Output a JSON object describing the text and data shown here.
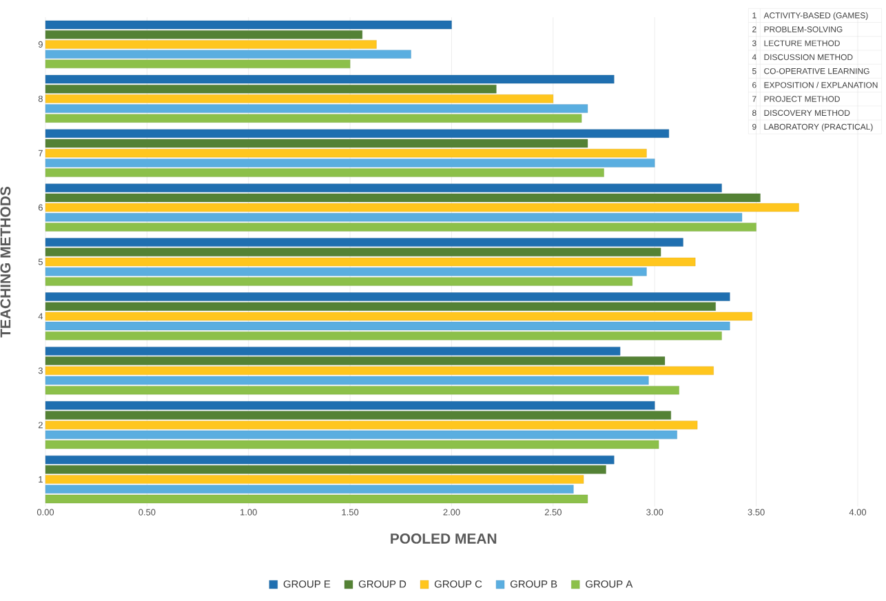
{
  "chart_data": {
    "type": "bar",
    "orientation": "horizontal",
    "xlabel": "POOLED  MEAN",
    "ylabel": "TEACHING  METHODS",
    "categories": [
      "9",
      "8",
      "7",
      "6",
      "5",
      "4",
      "3",
      "2",
      "1"
    ],
    "series": [
      {
        "name": "GROUP E",
        "color": "#1f6fb0",
        "values": [
          2.0,
          2.8,
          3.07,
          3.33,
          3.14,
          3.37,
          2.83,
          3.0,
          2.8
        ]
      },
      {
        "name": "GROUP D",
        "color": "#548235",
        "values": [
          1.56,
          2.22,
          2.67,
          3.52,
          3.03,
          3.3,
          3.05,
          3.08,
          2.76
        ]
      },
      {
        "name": "GROUP C",
        "color": "#ffc61e",
        "values": [
          1.63,
          2.5,
          2.96,
          3.71,
          3.2,
          3.48,
          3.29,
          3.21,
          2.65
        ]
      },
      {
        "name": "GROUP B",
        "color": "#5aaee0",
        "values": [
          1.8,
          2.67,
          3.0,
          3.43,
          2.96,
          3.37,
          2.97,
          3.11,
          2.6
        ]
      },
      {
        "name": "GROUP A",
        "color": "#8cc04a",
        "values": [
          1.5,
          2.64,
          2.75,
          3.5,
          2.89,
          3.33,
          3.12,
          3.02,
          2.67
        ]
      }
    ],
    "xlim": [
      0,
      4
    ],
    "xticks": [
      {
        "value": 0,
        "label": "0.00"
      },
      {
        "value": 0.5,
        "label": "0.50"
      },
      {
        "value": 1,
        "label": "1.00"
      },
      {
        "value": 1.5,
        "label": "1.50"
      },
      {
        "value": 2,
        "label": "2.00"
      },
      {
        "value": 2.5,
        "label": "2.50"
      },
      {
        "value": 3,
        "label": "3.00"
      },
      {
        "value": 3.5,
        "label": "3.50"
      },
      {
        "value": 4,
        "label": "4.00"
      }
    ],
    "grid": "x",
    "legend": "bottom",
    "annotations": [
      "1",
      "ACTIVITY-BASED (GAMES)",
      "2",
      "PROBLEM-SOLVING",
      "3",
      "LECTURE METHOD",
      "4",
      "DISCUSSION METHOD",
      "5",
      "CO-OPERATIVE LEARNING",
      "6",
      "EXPOSITION / EXPLANATION",
      "7",
      "PROJECT METHOD",
      "8",
      "DISCOVERY METHOD",
      "9",
      "LABORATORY (PRACTICAL)"
    ]
  }
}
